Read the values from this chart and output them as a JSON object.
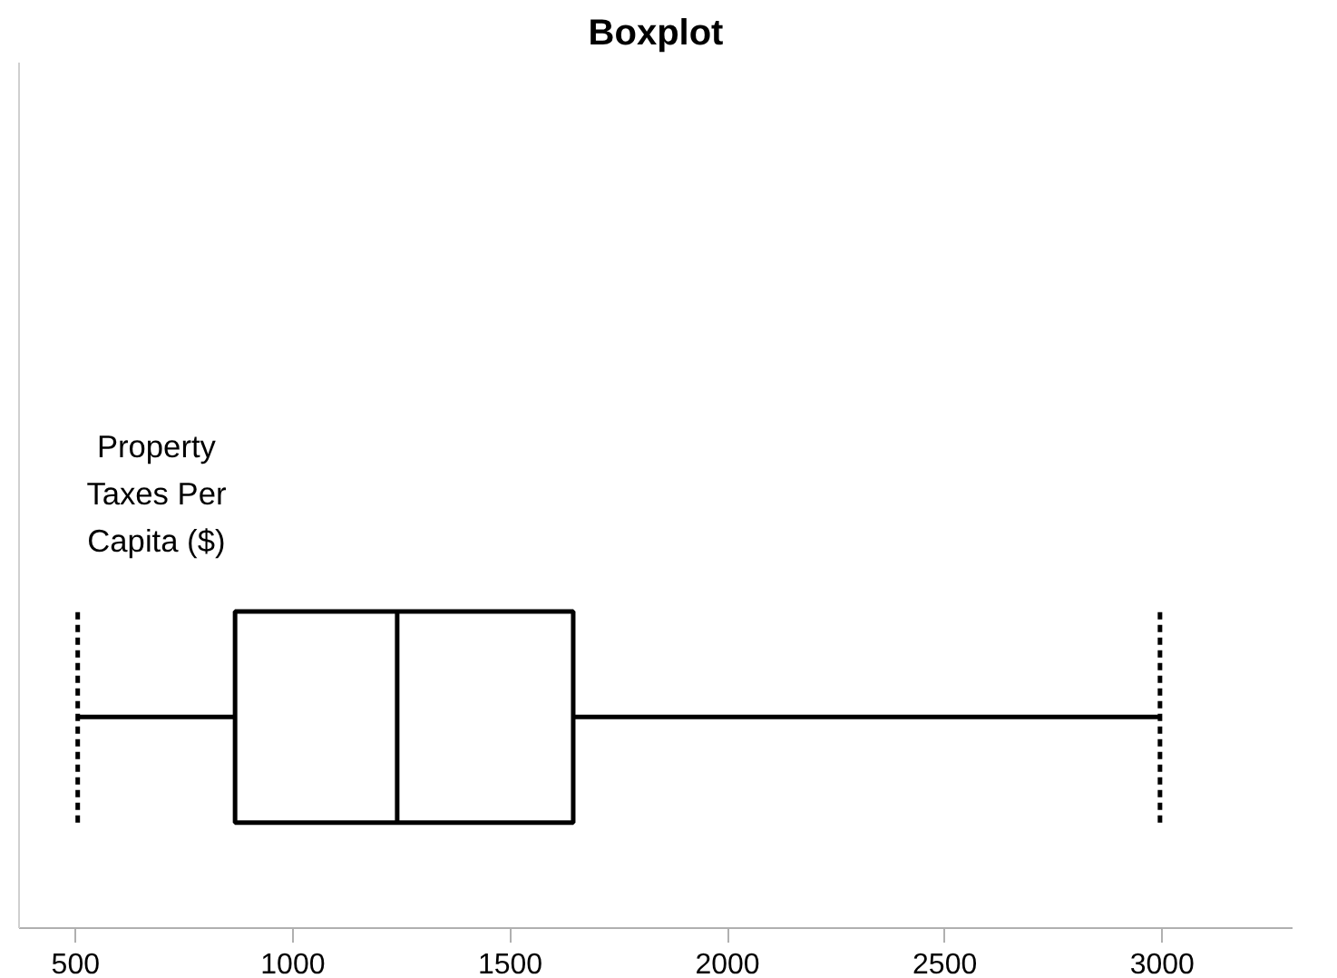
{
  "chart_data": {
    "type": "box",
    "title": "Boxplot",
    "orientation": "horizontal",
    "categories": [
      "Property Taxes Per Capita ($)"
    ],
    "boxes": [
      {
        "low": 505,
        "q1": 867,
        "median": 1240,
        "q3": 1645,
        "high": 2995
      }
    ],
    "xlim": [
      370,
      3300
    ],
    "xticks": [
      500,
      1000,
      1500,
      2000,
      2500,
      3000
    ],
    "grid": false,
    "tick_labels": "x"
  }
}
